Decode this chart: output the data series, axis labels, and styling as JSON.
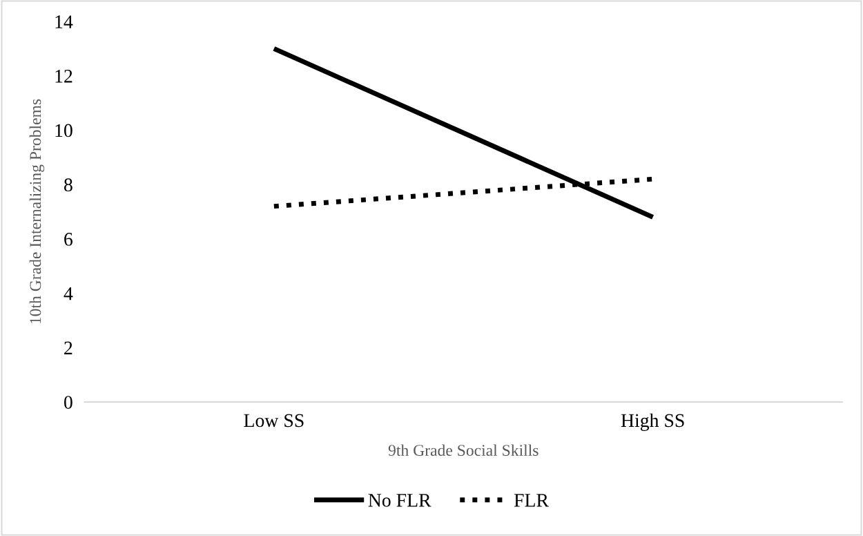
{
  "chart_data": {
    "type": "line",
    "xlabel": "9th Grade Social Skills",
    "ylabel": "10th Grade Internalizing Problems",
    "categories": [
      "Low SS",
      "High SS"
    ],
    "series": [
      {
        "name": "No FLR",
        "color": "#000000",
        "line_style": "solid",
        "values": [
          13.0,
          6.8
        ]
      },
      {
        "name": "FLR",
        "color": "#000000",
        "line_style": "dotted",
        "values": [
          7.2,
          8.2
        ]
      }
    ],
    "ylim": [
      0,
      14
    ],
    "yticks": [
      0,
      2,
      4,
      6,
      8,
      10,
      12,
      14
    ],
    "grid": false,
    "legend": "bottom"
  }
}
